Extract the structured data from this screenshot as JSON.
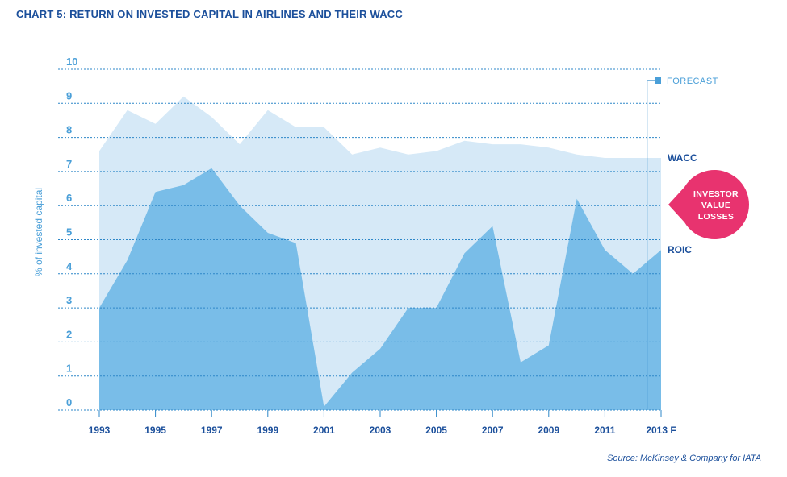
{
  "title": "CHART 5: RETURN ON INVESTED CAPITAL IN AIRLINES AND THEIR WACC",
  "source": "Source: McKinsey & Company for IATA",
  "colors": {
    "title": "#1b4f9b",
    "wacc_fill": "#d6e9f7",
    "roic_fill": "#79bde8",
    "grid": "#2e87c8",
    "tick_y": "#4a9fd8",
    "badge": "#e8336f"
  },
  "chart_data": {
    "type": "area",
    "ylabel": "% of invested capital",
    "ylim": [
      0,
      10
    ],
    "y_ticks": [
      "0",
      "1",
      "2",
      "3",
      "4",
      "5",
      "6",
      "7",
      "8",
      "9",
      "10"
    ],
    "x_tick_labels": [
      "1993",
      "1995",
      "1997",
      "1999",
      "2001",
      "2003",
      "2005",
      "2007",
      "2009",
      "2011",
      "2013 F"
    ],
    "x": [
      1993,
      1994,
      1995,
      1996,
      1997,
      1998,
      1999,
      2000,
      2001,
      2002,
      2003,
      2004,
      2005,
      2006,
      2007,
      2008,
      2009,
      2010,
      2011,
      2012,
      2013
    ],
    "grid": true,
    "series": [
      {
        "name": "WACC",
        "values": [
          7.6,
          8.8,
          8.4,
          9.2,
          8.6,
          7.8,
          8.8,
          8.3,
          8.3,
          7.5,
          7.7,
          7.5,
          7.6,
          7.9,
          7.8,
          7.8,
          7.7,
          7.5,
          7.4,
          7.4,
          7.4
        ]
      },
      {
        "name": "ROIC",
        "values": [
          3.0,
          4.4,
          6.4,
          6.6,
          7.1,
          6.0,
          5.2,
          4.9,
          0.1,
          1.1,
          1.8,
          3.0,
          3.0,
          4.6,
          5.4,
          1.4,
          1.9,
          6.2,
          4.7,
          4.0,
          4.7
        ]
      }
    ],
    "forecast_label": "FORECAST",
    "forecast_start": 2012.5,
    "annotation": [
      "INVESTOR",
      "VALUE",
      "LOSSES"
    ]
  }
}
